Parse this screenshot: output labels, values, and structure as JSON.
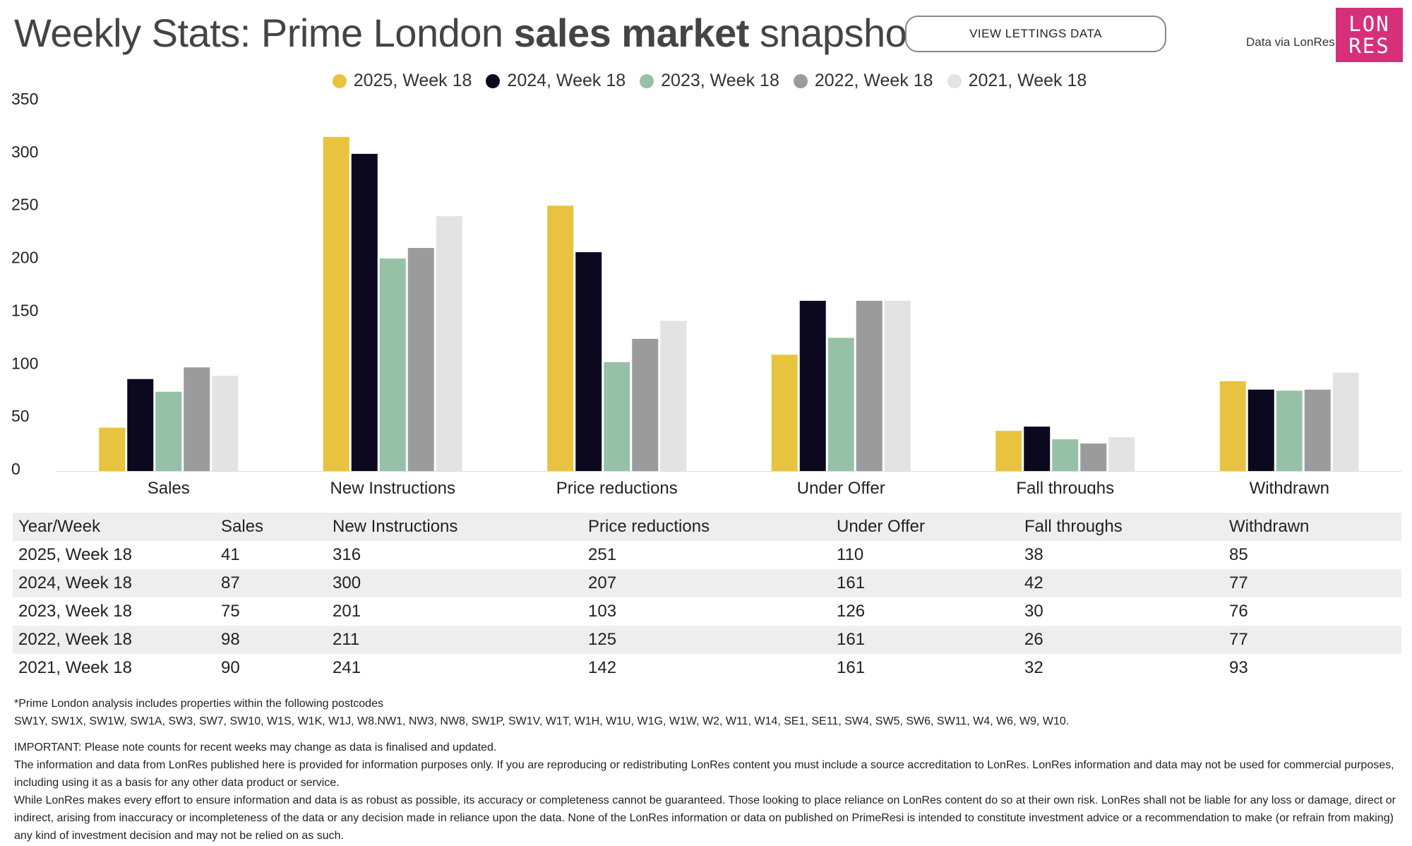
{
  "header": {
    "title_pre": "Weekly Stats: Prime London ",
    "title_bold": "sales market",
    "title_post": " snapshot",
    "lettings_button": "VIEW LETTINGS DATA",
    "source_text": "Data via LonRes",
    "logo_line1": "LON",
    "logo_line2": "RES"
  },
  "colors": {
    "series": [
      "#e8c33f",
      "#0b0820",
      "#97c1a7",
      "#9b9b9b",
      "#e3e3e3"
    ],
    "logo": "#d6307b"
  },
  "chart_data": {
    "type": "bar",
    "categories": [
      "Sales",
      "New Instructions",
      "Price reductions",
      "Under Offer",
      "Fall throughs",
      "Withdrawn"
    ],
    "series": [
      {
        "name": "2025, Week 18",
        "values": [
          41,
          316,
          251,
          110,
          38,
          85
        ]
      },
      {
        "name": "2024, Week 18",
        "values": [
          87,
          300,
          207,
          161,
          42,
          77
        ]
      },
      {
        "name": "2023, Week 18",
        "values": [
          75,
          201,
          103,
          126,
          30,
          76
        ]
      },
      {
        "name": "2022, Week 18",
        "values": [
          98,
          211,
          125,
          161,
          26,
          77
        ]
      },
      {
        "name": "2021, Week 18",
        "values": [
          90,
          241,
          142,
          161,
          32,
          93
        ]
      }
    ],
    "yticks": [
      0,
      50,
      100,
      150,
      200,
      250,
      300,
      350
    ],
    "ylim": [
      0,
      350
    ],
    "legend_position": "top-center",
    "grid": false
  },
  "table": {
    "headers": [
      "Year/Week",
      "Sales",
      "New Instructions",
      "Price reductions",
      "Under Offer",
      "Fall throughs",
      "Withdrawn"
    ],
    "rows": [
      [
        "2025, Week 18",
        "41",
        "316",
        "251",
        "110",
        "38",
        "85"
      ],
      [
        "2024, Week 18",
        "87",
        "300",
        "207",
        "161",
        "42",
        "77"
      ],
      [
        "2023, Week 18",
        "75",
        "201",
        "103",
        "126",
        "30",
        "76"
      ],
      [
        "2022, Week 18",
        "98",
        "211",
        "125",
        "161",
        "26",
        "77"
      ],
      [
        "2021, Week 18",
        "90",
        "241",
        "142",
        "161",
        "32",
        "93"
      ]
    ]
  },
  "notes": {
    "postcodes_intro": "*Prime London analysis includes properties within the following postcodes",
    "postcodes": "SW1Y, SW1X, SW1W, SW1A, SW3, SW7, SW10, W1S, W1K, W1J, W8.NW1, NW3, NW8, SW1P, SW1V, W1T, W1H, W1U, W1G, W1W, W2, W11, W14, SE1, SE11, SW4, SW5, SW6, SW11, W4, W6, W9, W10.",
    "important": "IMPORTANT: Please note counts for recent weeks may change as data is finalised and updated.",
    "info": "The information and data from LonRes published here is provided for information purposes only. If you are reproducing or redistributing LonRes content you must include a source accreditation to LonRes. LonRes information and data may not be used for commercial purposes, including using it as a basis for any other data product or service.",
    "disclaimer": "While LonRes makes every effort to ensure information and data is as robust as possible, its accuracy or completeness cannot be guaranteed. Those looking to place reliance on LonRes content do so at their own risk. LonRes shall not be liable for any loss or damage, direct or indirect, arising from inaccuracy or incompleteness of the data or any decision made in reliance upon the data. None of the LonRes information or data on published on PrimeResi is intended to constitute investment advice or a recommendation to make (or refrain from making) any kind of investment decision and may not be relied on as such."
  }
}
